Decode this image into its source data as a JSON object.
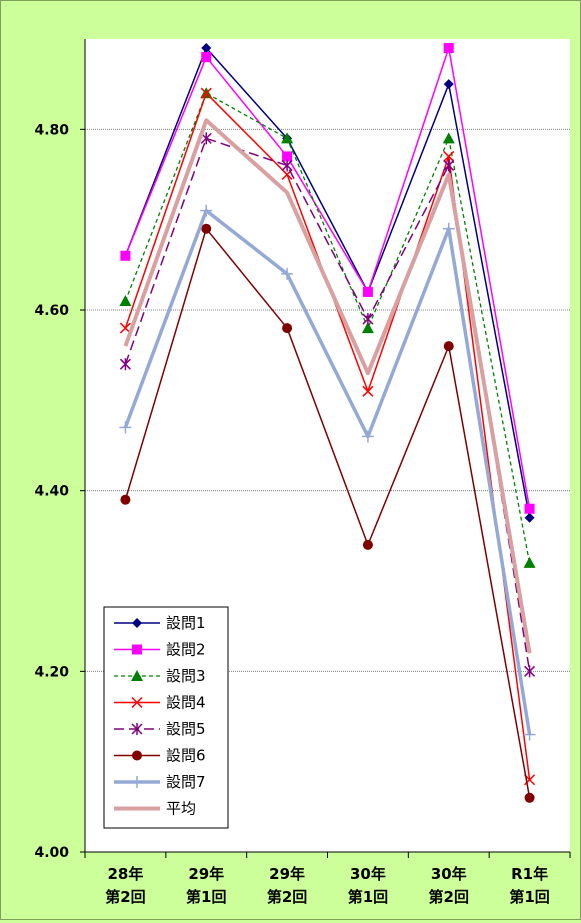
{
  "colors": {
    "background": "#ccff99",
    "plot_area": "#ffffff",
    "gridline": "#808080"
  },
  "chart_data": {
    "type": "line",
    "title": "",
    "xlabel": "",
    "ylabel": "",
    "ylim": [
      4.0,
      4.9
    ],
    "y_ticks": [
      4.0,
      4.2,
      4.4,
      4.6,
      4.8
    ],
    "y_tick_labels": [
      "4.00",
      "4.20",
      "4.40",
      "4.60",
      "4.80"
    ],
    "grid": "horizontal",
    "legend_position": "bottom-left",
    "categories": [
      [
        "28年",
        "第2回"
      ],
      [
        "29年",
        "第1回"
      ],
      [
        "29年",
        "第2回"
      ],
      [
        "30年",
        "第1回"
      ],
      [
        "30年",
        "第2回"
      ],
      [
        "R1年",
        "第1回"
      ]
    ],
    "series": [
      {
        "name": "設問1",
        "color": "#000080",
        "marker": "diamond",
        "dash": "solid",
        "width": 1.5,
        "values": [
          4.66,
          4.89,
          4.79,
          4.62,
          4.85,
          4.37
        ]
      },
      {
        "name": "設問2",
        "color": "#ff00ff",
        "marker": "square",
        "dash": "solid",
        "width": 1.5,
        "values": [
          4.66,
          4.88,
          4.77,
          4.62,
          4.89,
          4.38
        ]
      },
      {
        "name": "設問3",
        "color": "#008000",
        "marker": "triangle",
        "dash": "4,3",
        "width": 1.3,
        "values": [
          4.61,
          4.84,
          4.79,
          4.58,
          4.79,
          4.32
        ]
      },
      {
        "name": "設問4",
        "color": "#ff0000",
        "marker": "x",
        "dash": "solid",
        "width": 1.5,
        "values": [
          4.58,
          4.84,
          4.75,
          4.51,
          4.77,
          4.08
        ]
      },
      {
        "name": "設問5",
        "color": "#800080",
        "marker": "asterisk",
        "dash": "10,5",
        "width": 1.5,
        "values": [
          4.54,
          4.79,
          4.76,
          4.59,
          4.76,
          4.2
        ]
      },
      {
        "name": "設問6",
        "color": "#800000",
        "marker": "circle",
        "dash": "solid",
        "width": 1.5,
        "values": [
          4.39,
          4.69,
          4.58,
          4.34,
          4.56,
          4.06
        ]
      },
      {
        "name": "設問7",
        "color": "#95a9d6",
        "marker": "plus",
        "dash": "solid",
        "width": 3.5,
        "values": [
          4.47,
          4.71,
          4.64,
          4.46,
          4.69,
          4.13
        ]
      },
      {
        "name": "平均",
        "color": "#d8a0a0",
        "marker": "none",
        "dash": "solid",
        "width": 4,
        "values": [
          4.56,
          4.81,
          4.73,
          4.53,
          4.75,
          4.22
        ]
      }
    ]
  }
}
